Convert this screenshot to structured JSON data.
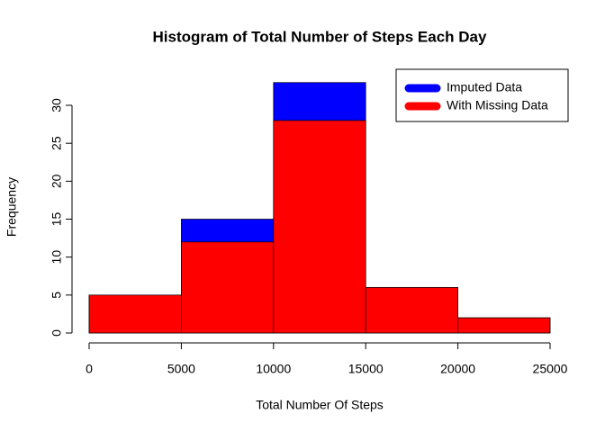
{
  "chart_data": {
    "type": "histogram",
    "title": "Histogram of Total Number of Steps Each Day",
    "x_label": "Total Number Of Steps",
    "y_label": "Frequency",
    "bins": [
      0,
      5000,
      10000,
      15000,
      20000,
      25000
    ],
    "series": [
      {
        "name": "Imputed Data",
        "color": "#0000ff",
        "values": [
          5,
          15,
          33,
          6,
          2
        ]
      },
      {
        "name": "With Missing Data",
        "color": "#ff0000",
        "values": [
          5,
          12,
          28,
          6,
          2
        ]
      }
    ],
    "xlim": [
      0,
      25000
    ],
    "xticks": [
      0,
      5000,
      10000,
      15000,
      20000,
      25000
    ],
    "ylim": [
      0,
      33
    ],
    "yticks": [
      0,
      5,
      10,
      15,
      20,
      25,
      30
    ],
    "legend": "topright"
  }
}
